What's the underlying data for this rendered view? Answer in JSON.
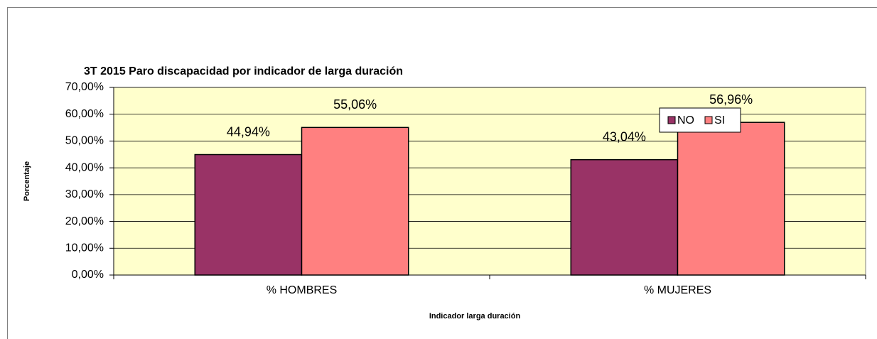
{
  "chart_data": {
    "type": "bar",
    "title": "3T 2015 Paro discapacidad por indicador de larga duración",
    "x_label": "Indicador larga duración",
    "y_label": "Porcentaje",
    "categories": [
      "% HOMBRES",
      "% MUJERES"
    ],
    "series": [
      {
        "name": "NO",
        "color": "#993366",
        "values": [
          44.94,
          43.04
        ],
        "value_labels": [
          "44,94%",
          "43,04%"
        ]
      },
      {
        "name": "SI",
        "color": "#FF8080",
        "values": [
          55.06,
          56.96
        ],
        "value_labels": [
          "55,06%",
          "56,96%"
        ]
      }
    ],
    "ylim": [
      0,
      70
    ],
    "yticks": [
      {
        "value": 0,
        "label": "0,00%"
      },
      {
        "value": 10,
        "label": "10,00%"
      },
      {
        "value": 20,
        "label": "20,00%"
      },
      {
        "value": 30,
        "label": "30,00%"
      },
      {
        "value": 40,
        "label": "40,00%"
      },
      {
        "value": 50,
        "label": "50,00%"
      },
      {
        "value": 60,
        "label": "60,00%"
      },
      {
        "value": 70,
        "label": "70,00%"
      }
    ],
    "grid": true,
    "legend_position": "top-right",
    "plot_background": "#FFFFCC"
  }
}
